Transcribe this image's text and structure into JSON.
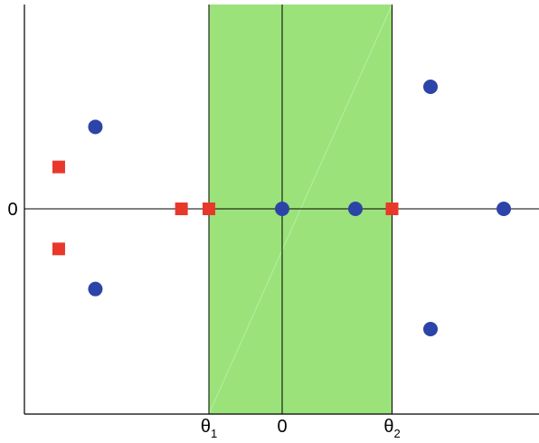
{
  "chart_data": {
    "type": "scatter",
    "title": "",
    "xlabel": "",
    "ylabel": "",
    "xlim": [
      -6.8,
      6.8
    ],
    "ylim": [
      -5.6,
      5.6
    ],
    "grid": false,
    "legend": "none",
    "x_ticks": [
      {
        "value": -2,
        "label": "θ",
        "sub": "1"
      },
      {
        "value": 0,
        "label": "0",
        "sub": ""
      },
      {
        "value": 3,
        "label": "θ",
        "sub": "2"
      }
    ],
    "y_ticks": [
      {
        "value": 0,
        "label": "0"
      }
    ],
    "shaded_band": {
      "x_from": -2,
      "x_to": 3,
      "color": "#9be27a"
    },
    "series": [
      {
        "marker": "square",
        "color": "#e8382a",
        "points": [
          {
            "x": -6.1,
            "y": 1.15
          },
          {
            "x": -6.1,
            "y": -1.1
          },
          {
            "x": -2.75,
            "y": 0
          },
          {
            "x": -2,
            "y": 0
          },
          {
            "x": 3,
            "y": 0
          }
        ]
      },
      {
        "marker": "circle",
        "color": "#2c44a8",
        "points": [
          {
            "x": -5.1,
            "y": 2.25
          },
          {
            "x": -5.1,
            "y": -2.2
          },
          {
            "x": 0,
            "y": 0
          },
          {
            "x": 2,
            "y": 0
          },
          {
            "x": 6.05,
            "y": 0
          },
          {
            "x": 4.05,
            "y": 3.35
          },
          {
            "x": 4.05,
            "y": -3.3
          }
        ]
      }
    ]
  }
}
